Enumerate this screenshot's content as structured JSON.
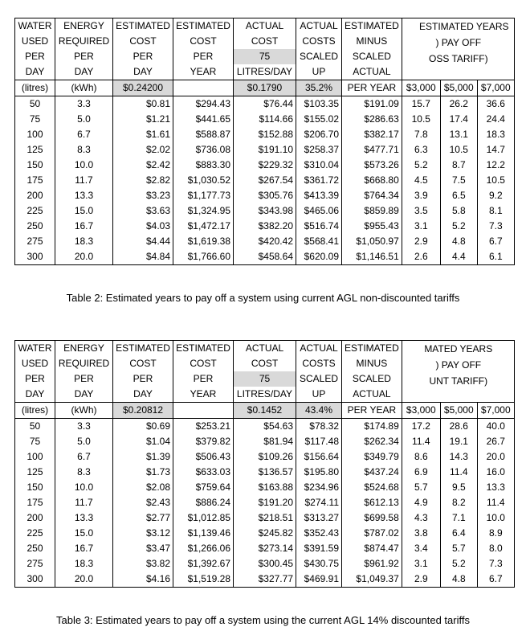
{
  "tables": [
    {
      "columns": [
        {
          "lines": [
            "WATER",
            "USED",
            "PER",
            "DAY",
            "(litres)"
          ]
        },
        {
          "lines": [
            "ENERGY",
            "REQUIRED",
            "PER",
            "DAY",
            "(kWh)"
          ]
        },
        {
          "lines": [
            "ESTIMATED",
            "COST",
            "PER",
            "DAY",
            "$0.24200"
          ]
        },
        {
          "lines": [
            "ESTIMATED",
            "COST",
            "PER",
            "YEAR"
          ]
        },
        {
          "lines": [
            "ACTUAL",
            "COST",
            "75",
            "LITRES/DAY",
            "$0.1790"
          ]
        },
        {
          "lines": [
            "ACTUAL",
            "COSTS",
            "SCALED",
            "UP",
            "35.2%"
          ]
        },
        {
          "lines": [
            "ESTIMATED",
            "MINUS",
            "SCALED",
            "ACTUAL",
            "PER YEAR"
          ]
        }
      ],
      "years_header": {
        "lines": [
          "ESTIMATED YEARS",
          ") PAY OFF",
          "OSS TARIFF)"
        ],
        "amounts": [
          "$3,000",
          "$5,000",
          "$7,000"
        ]
      },
      "rows": [
        [
          "50",
          "3.3",
          "$0.81",
          "$294.43",
          "$76.44",
          "$103.35",
          "$191.09",
          "15.7",
          "26.2",
          "36.6"
        ],
        [
          "75",
          "5.0",
          "$1.21",
          "$441.65",
          "$114.66",
          "$155.02",
          "$286.63",
          "10.5",
          "17.4",
          "24.4"
        ],
        [
          "100",
          "6.7",
          "$1.61",
          "$588.87",
          "$152.88",
          "$206.70",
          "$382.17",
          "7.8",
          "13.1",
          "18.3"
        ],
        [
          "125",
          "8.3",
          "$2.02",
          "$736.08",
          "$191.10",
          "$258.37",
          "$477.71",
          "6.3",
          "10.5",
          "14.7"
        ],
        [
          "150",
          "10.0",
          "$2.42",
          "$883.30",
          "$229.32",
          "$310.04",
          "$573.26",
          "5.2",
          "8.7",
          "12.2"
        ],
        [
          "175",
          "11.7",
          "$2.82",
          "$1,030.52",
          "$267.54",
          "$361.72",
          "$668.80",
          "4.5",
          "7.5",
          "10.5"
        ],
        [
          "200",
          "13.3",
          "$3.23",
          "$1,177.73",
          "$305.76",
          "$413.39",
          "$764.34",
          "3.9",
          "6.5",
          "9.2"
        ],
        [
          "225",
          "15.0",
          "$3.63",
          "$1,324.95",
          "$343.98",
          "$465.06",
          "$859.89",
          "3.5",
          "5.8",
          "8.1"
        ],
        [
          "250",
          "16.7",
          "$4.03",
          "$1,472.17",
          "$382.20",
          "$516.74",
          "$955.43",
          "3.1",
          "5.2",
          "7.3"
        ],
        [
          "275",
          "18.3",
          "$4.44",
          "$1,619.38",
          "$420.42",
          "$568.41",
          "$1,050.97",
          "2.9",
          "4.8",
          "6.7"
        ],
        [
          "300",
          "20.0",
          "$4.84",
          "$1,766.60",
          "$458.64",
          "$620.09",
          "$1,146.51",
          "2.6",
          "4.4",
          "6.1"
        ]
      ],
      "caption": "Table 2: Estimated years to pay off a system using current AGL non-discounted tariffs"
    },
    {
      "columns": [
        {
          "lines": [
            "WATER",
            "USED",
            "PER",
            "DAY",
            "(litres)"
          ]
        },
        {
          "lines": [
            "ENERGY",
            "REQUIRED",
            "PER",
            "DAY",
            "(kWh)"
          ]
        },
        {
          "lines": [
            "ESTIMATED",
            "COST",
            "PER",
            "DAY",
            "$0.20812"
          ]
        },
        {
          "lines": [
            "ESTIMATED",
            "COST",
            "PER",
            "YEAR"
          ]
        },
        {
          "lines": [
            "ACTUAL",
            "COST",
            "75",
            "LITRES/DAY",
            "$0.1452"
          ]
        },
        {
          "lines": [
            "ACTUAL",
            "COSTS",
            "SCALED",
            "UP",
            "43.4%"
          ]
        },
        {
          "lines": [
            "ESTIMATED",
            "MINUS",
            "SCALED",
            "ACTUAL",
            "PER YEAR"
          ]
        }
      ],
      "years_header": {
        "lines": [
          "MATED YEARS",
          ") PAY OFF",
          "UNT TARIFF)"
        ],
        "amounts": [
          "$3,000",
          "$5,000",
          "$7,000"
        ]
      },
      "rows": [
        [
          "50",
          "3.3",
          "$0.69",
          "$253.21",
          "$54.63",
          "$78.32",
          "$174.89",
          "17.2",
          "28.6",
          "40.0"
        ],
        [
          "75",
          "5.0",
          "$1.04",
          "$379.82",
          "$81.94",
          "$117.48",
          "$262.34",
          "11.4",
          "19.1",
          "26.7"
        ],
        [
          "100",
          "6.7",
          "$1.39",
          "$506.43",
          "$109.26",
          "$156.64",
          "$349.79",
          "8.6",
          "14.3",
          "20.0"
        ],
        [
          "125",
          "8.3",
          "$1.73",
          "$633.03",
          "$136.57",
          "$195.80",
          "$437.24",
          "6.9",
          "11.4",
          "16.0"
        ],
        [
          "150",
          "10.0",
          "$2.08",
          "$759.64",
          "$163.88",
          "$234.96",
          "$524.68",
          "5.7",
          "9.5",
          "13.3"
        ],
        [
          "175",
          "11.7",
          "$2.43",
          "$886.24",
          "$191.20",
          "$274.11",
          "$612.13",
          "4.9",
          "8.2",
          "11.4"
        ],
        [
          "200",
          "13.3",
          "$2.77",
          "$1,012.85",
          "$218.51",
          "$313.27",
          "$699.58",
          "4.3",
          "7.1",
          "10.0"
        ],
        [
          "225",
          "15.0",
          "$3.12",
          "$1,139.46",
          "$245.82",
          "$352.43",
          "$787.02",
          "3.8",
          "6.4",
          "8.9"
        ],
        [
          "250",
          "16.7",
          "$3.47",
          "$1,266.06",
          "$273.14",
          "$391.59",
          "$874.47",
          "3.4",
          "5.7",
          "8.0"
        ],
        [
          "275",
          "18.3",
          "$3.82",
          "$1,392.67",
          "$300.45",
          "$430.75",
          "$961.92",
          "3.1",
          "5.2",
          "7.3"
        ],
        [
          "300",
          "20.0",
          "$4.16",
          "$1,519.28",
          "$327.77",
          "$469.91",
          "$1,049.37",
          "2.9",
          "4.8",
          "6.7"
        ]
      ],
      "caption": "Table 3: Estimated years to pay off a system using the current AGL 14% discounted tariffs"
    }
  ]
}
